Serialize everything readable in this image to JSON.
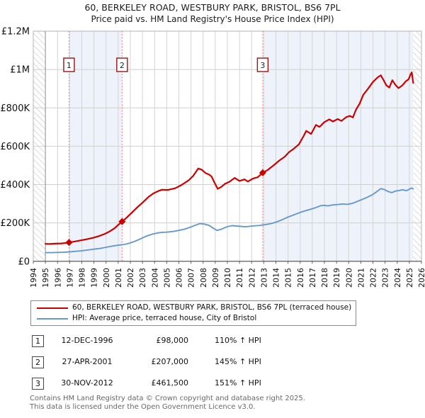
{
  "header": {
    "title": "60, BERKELEY ROAD, WESTBURY PARK, BRISTOL, BS6 7PL",
    "subtitle": "Price paid vs. HM Land Registry's House Price Index (HPI)"
  },
  "chart_data": {
    "type": "line",
    "title": "60, BERKELEY ROAD, WESTBURY PARK, BRISTOL, BS6 7PL",
    "subtitle": "Price paid vs. HM Land Registry's House Price Index (HPI)",
    "x_axis": {
      "start": 1994,
      "end": 2026,
      "tick_labels": [
        "1994",
        "1995",
        "1996",
        "1997",
        "1998",
        "1999",
        "2000",
        "2001",
        "2002",
        "2003",
        "2004",
        "2005",
        "2006",
        "2007",
        "2008",
        "2009",
        "2010",
        "2011",
        "2012",
        "2013",
        "2014",
        "2015",
        "2016",
        "2017",
        "2018",
        "2019",
        "2020",
        "2021",
        "2022",
        "2023",
        "2024",
        "2025",
        "2026"
      ]
    },
    "y_axis": {
      "min": 0,
      "max": 1200000,
      "ticks": [
        {
          "value": 0,
          "label": "£0"
        },
        {
          "value": 200000,
          "label": "£200K"
        },
        {
          "value": 400000,
          "label": "£400K"
        },
        {
          "value": 600000,
          "label": "£600K"
        },
        {
          "value": 800000,
          "label": "£800K"
        },
        {
          "value": 1000000,
          "label": "£1M"
        },
        {
          "value": 1200000,
          "label": "£1.2M"
        }
      ]
    },
    "grid": true,
    "legend_position": "bottom",
    "series": [
      {
        "name": "60, BERKELEY ROAD, WESTBURY PARK, BRISTOL, BS6 7PL (terraced house)",
        "color": "#cc0000",
        "width": 2.2,
        "points_year_gbpk": [
          [
            1995,
            91
          ],
          [
            1995.4,
            90
          ],
          [
            1995.8,
            92
          ],
          [
            1996.3,
            93
          ],
          [
            1996.6,
            95
          ],
          [
            1996.945,
            98
          ],
          [
            1997.4,
            103
          ],
          [
            1997.9,
            109
          ],
          [
            1998.4,
            115
          ],
          [
            1998.9,
            122
          ],
          [
            1999.4,
            131
          ],
          [
            1999.9,
            143
          ],
          [
            2000.3,
            156
          ],
          [
            2000.7,
            172
          ],
          [
            2001,
            190
          ],
          [
            2001.32,
            207
          ],
          [
            2001.7,
            228
          ],
          [
            2002.1,
            252
          ],
          [
            2002.6,
            283
          ],
          [
            2003,
            305
          ],
          [
            2003.5,
            336
          ],
          [
            2003.9,
            354
          ],
          [
            2004.3,
            366
          ],
          [
            2004.6,
            373
          ],
          [
            2005.1,
            372
          ],
          [
            2005.7,
            381
          ],
          [
            2006.2,
            397
          ],
          [
            2006.8,
            422
          ],
          [
            2007.2,
            447
          ],
          [
            2007.6,
            484
          ],
          [
            2007.9,
            477
          ],
          [
            2008.2,
            460
          ],
          [
            2008.5,
            452
          ],
          [
            2008.7,
            442
          ],
          [
            2008.9,
            415
          ],
          [
            2009.2,
            378
          ],
          [
            2009.5,
            388
          ],
          [
            2009.8,
            404
          ],
          [
            2010.2,
            416
          ],
          [
            2010.6,
            435
          ],
          [
            2011,
            419
          ],
          [
            2011.4,
            427
          ],
          [
            2011.7,
            416
          ],
          [
            2012.1,
            431
          ],
          [
            2012.5,
            438
          ],
          [
            2012.913,
            461.5
          ],
          [
            2013.3,
            475
          ],
          [
            2013.8,
            500
          ],
          [
            2014.3,
            526
          ],
          [
            2014.7,
            544
          ],
          [
            2015.1,
            570
          ],
          [
            2015.5,
            588
          ],
          [
            2015.9,
            610
          ],
          [
            2016.3,
            655
          ],
          [
            2016.5,
            680
          ],
          [
            2016.9,
            664
          ],
          [
            2017.3,
            711
          ],
          [
            2017.6,
            701
          ],
          [
            2018,
            726
          ],
          [
            2018.4,
            740
          ],
          [
            2018.7,
            729
          ],
          [
            2019.1,
            742
          ],
          [
            2019.4,
            732
          ],
          [
            2019.8,
            752
          ],
          [
            2020.1,
            758
          ],
          [
            2020.35,
            750
          ],
          [
            2020.6,
            790
          ],
          [
            2020.9,
            822
          ],
          [
            2021.2,
            868
          ],
          [
            2021.6,
            900
          ],
          [
            2022,
            935
          ],
          [
            2022.4,
            960
          ],
          [
            2022.65,
            970
          ],
          [
            2022.9,
            942
          ],
          [
            2023.1,
            918
          ],
          [
            2023.35,
            906
          ],
          [
            2023.6,
            944
          ],
          [
            2023.85,
            920
          ],
          [
            2024.1,
            903
          ],
          [
            2024.4,
            916
          ],
          [
            2024.7,
            938
          ],
          [
            2024.95,
            950
          ],
          [
            2025.1,
            975
          ],
          [
            2025.2,
            985
          ],
          [
            2025.32,
            930
          ]
        ]
      },
      {
        "name": "HPI: Average price, terraced house, City of Bristol",
        "color": "#6699cc",
        "width": 1.9,
        "points_year_gbpk": [
          [
            1995,
            45
          ],
          [
            1995.5,
            45
          ],
          [
            1996,
            46
          ],
          [
            1996.5,
            47
          ],
          [
            1997,
            49
          ],
          [
            1997.5,
            52
          ],
          [
            1998,
            55
          ],
          [
            1998.5,
            59
          ],
          [
            1999,
            63
          ],
          [
            1999.5,
            67
          ],
          [
            2000,
            73
          ],
          [
            2000.5,
            79
          ],
          [
            2001,
            84
          ],
          [
            2001.32,
            86
          ],
          [
            2001.8,
            92
          ],
          [
            2002.2,
            100
          ],
          [
            2002.6,
            110
          ],
          [
            2003,
            122
          ],
          [
            2003.4,
            133
          ],
          [
            2003.8,
            141
          ],
          [
            2004.2,
            147
          ],
          [
            2004.6,
            151
          ],
          [
            2005,
            152
          ],
          [
            2005.5,
            155
          ],
          [
            2006,
            161
          ],
          [
            2006.5,
            168
          ],
          [
            2007,
            179
          ],
          [
            2007.4,
            189
          ],
          [
            2007.75,
            197
          ],
          [
            2008.1,
            194
          ],
          [
            2008.5,
            187
          ],
          [
            2008.8,
            174
          ],
          [
            2009.15,
            161
          ],
          [
            2009.5,
            167
          ],
          [
            2009.8,
            176
          ],
          [
            2010.1,
            182
          ],
          [
            2010.4,
            186
          ],
          [
            2010.7,
            184
          ],
          [
            2011.1,
            182
          ],
          [
            2011.5,
            180
          ],
          [
            2011.9,
            183
          ],
          [
            2012.3,
            185
          ],
          [
            2012.7,
            187
          ],
          [
            2012.913,
            189
          ],
          [
            2013.3,
            193
          ],
          [
            2013.7,
            198
          ],
          [
            2014.1,
            206
          ],
          [
            2014.5,
            216
          ],
          [
            2014.9,
            228
          ],
          [
            2015.3,
            238
          ],
          [
            2015.7,
            247
          ],
          [
            2016.1,
            257
          ],
          [
            2016.5,
            265
          ],
          [
            2016.9,
            272
          ],
          [
            2017.3,
            280
          ],
          [
            2017.7,
            290
          ],
          [
            2018,
            292
          ],
          [
            2018.3,
            289
          ],
          [
            2018.7,
            294
          ],
          [
            2019.1,
            296
          ],
          [
            2019.5,
            299
          ],
          [
            2019.9,
            297
          ],
          [
            2020.3,
            302
          ],
          [
            2020.7,
            312
          ],
          [
            2021.1,
            322
          ],
          [
            2021.5,
            333
          ],
          [
            2021.9,
            345
          ],
          [
            2022.3,
            362
          ],
          [
            2022.65,
            379
          ],
          [
            2022.95,
            374
          ],
          [
            2023.25,
            364
          ],
          [
            2023.55,
            358
          ],
          [
            2023.85,
            366
          ],
          [
            2024.15,
            369
          ],
          [
            2024.45,
            373
          ],
          [
            2024.75,
            368
          ],
          [
            2025,
            376
          ],
          [
            2025.2,
            382
          ],
          [
            2025.32,
            378
          ]
        ]
      }
    ],
    "sale_markers": [
      {
        "label": "1",
        "year": 1996.945,
        "value_gbp": 98000
      },
      {
        "label": "2",
        "year": 2001.32,
        "value_gbp": 207000
      },
      {
        "label": "3",
        "year": 2012.913,
        "value_gbp": 461500
      }
    ],
    "shaded_periods": [
      [
        1996.945,
        2001.32
      ],
      [
        2012.913,
        2025.32
      ]
    ],
    "hatched_periods": [
      [
        1994,
        1995
      ],
      [
        2025.32,
        2026
      ]
    ],
    "colors": {
      "shade": "#edf2fb",
      "grid": "#d4d4d4",
      "sale_line": "#ff6b6b",
      "marker_box_border": "#a01010",
      "hatch": "#bbbbbb"
    }
  },
  "legend": {
    "items": [
      {
        "label": "60, BERKELEY ROAD, WESTBURY PARK, BRISTOL, BS6 7PL (terraced house)",
        "color": "#cc0000"
      },
      {
        "label": "HPI: Average price, terraced house, City of Bristol",
        "color": "#6699cc"
      }
    ]
  },
  "transactions": [
    {
      "num": "1",
      "date": "12-DEC-1996",
      "price": "£98,000",
      "hpi": "110% ↑ HPI"
    },
    {
      "num": "2",
      "date": "27-APR-2001",
      "price": "£207,000",
      "hpi": "145% ↑ HPI"
    },
    {
      "num": "3",
      "date": "30-NOV-2012",
      "price": "£461,500",
      "hpi": "151% ↑ HPI"
    }
  ],
  "footer": {
    "line1": "Contains HM Land Registry data © Crown copyright and database right 2025.",
    "line2": "This data is licensed under the Open Government Licence v3.0."
  }
}
